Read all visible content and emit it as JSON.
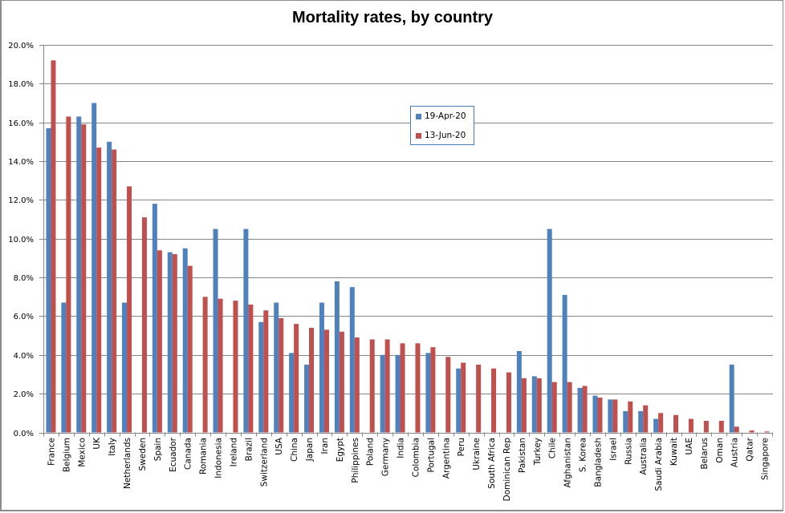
{
  "chart_data": {
    "type": "bar",
    "title": "Mortality rates, by country",
    "xlabel": "",
    "ylabel": "",
    "ylim": [
      0,
      20
    ],
    "yticks": [
      "0.0%",
      "2.0%",
      "4.0%",
      "6.0%",
      "8.0%",
      "10.0%",
      "12.0%",
      "14.0%",
      "16.0%",
      "18.0%",
      "20.0%"
    ],
    "ytick_values": [
      0,
      2,
      4,
      6,
      8,
      10,
      12,
      14,
      16,
      18,
      20
    ],
    "grid": true,
    "legend_position": "upper-center",
    "categories": [
      "France",
      "Belgium",
      "Mexico",
      "UK",
      "Italy",
      "Netherlands",
      "Sweden",
      "Spain",
      "Ecuador",
      "Canada",
      "Romania",
      "Indonesia",
      "Ireland",
      "Brazil",
      "Switzerland",
      "USA",
      "China",
      "Japan",
      "Iran",
      "Egypt",
      "Philippines",
      "Poland",
      "Germany",
      "India",
      "Colombia",
      "Portugal",
      "Argentina",
      "Peru",
      "Ukraine",
      "South Africa",
      "Dominican Rep",
      "Pakistan",
      "Turkey",
      "Chile",
      "Afghanistan",
      "S. Korea",
      "Bangladesh",
      "Israel",
      "Russia",
      "Australia",
      "Saudi Arabia",
      "Kuwait",
      "UAE",
      "Belarus",
      "Oman",
      "Austria",
      "Qatar",
      "Singapore"
    ],
    "series": [
      {
        "name": "19-Apr-20",
        "color": "#4f81bd",
        "values": [
          15.7,
          6.7,
          16.3,
          17.0,
          15.0,
          6.7,
          null,
          11.8,
          9.3,
          9.5,
          null,
          10.5,
          null,
          10.5,
          5.7,
          6.7,
          4.1,
          3.5,
          6.7,
          7.8,
          7.5,
          null,
          4.0,
          4.0,
          null,
          4.1,
          null,
          3.3,
          null,
          null,
          null,
          4.2,
          2.9,
          10.5,
          7.1,
          2.3,
          1.9,
          1.7,
          1.1,
          1.1,
          0.7,
          null,
          null,
          null,
          null,
          3.5,
          null,
          null
        ]
      },
      {
        "name": "13-Jun-20",
        "color": "#c0504d",
        "values": [
          19.2,
          16.3,
          15.9,
          14.7,
          14.6,
          12.7,
          11.1,
          9.4,
          9.2,
          8.6,
          7.0,
          6.9,
          6.8,
          6.6,
          6.3,
          5.9,
          5.6,
          5.4,
          5.3,
          5.2,
          4.9,
          4.8,
          4.8,
          4.6,
          4.6,
          4.4,
          3.9,
          3.6,
          3.5,
          3.3,
          3.1,
          2.8,
          2.8,
          2.6,
          2.6,
          2.4,
          1.8,
          1.7,
          1.6,
          1.4,
          1.0,
          0.9,
          0.7,
          0.6,
          0.6,
          0.3,
          0.1,
          0.05
        ]
      }
    ]
  }
}
